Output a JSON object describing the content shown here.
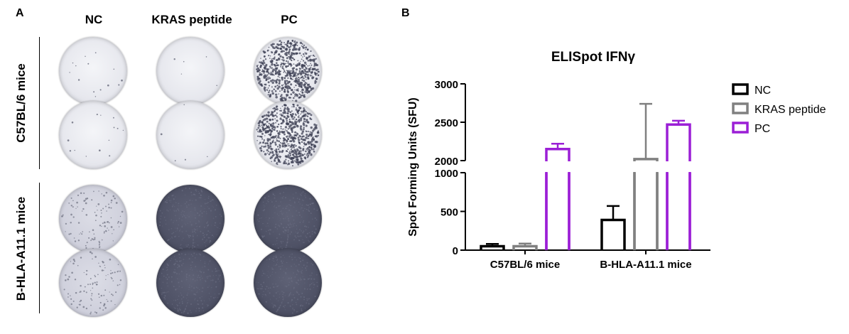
{
  "panels": {
    "a": "A",
    "b": "B"
  },
  "wells": {
    "columns": [
      "NC",
      "KRAS peptide",
      "PC"
    ],
    "rows": [
      "C57BL/6 mice",
      "B-HLA-A11.1 mice"
    ],
    "images": [
      [
        "clear-sparse",
        "clear-blank",
        "clear-dense-spots"
      ],
      [
        "clear-sparse",
        "clear-blank",
        "clear-dense-spots"
      ],
      [
        "clear-spotted",
        "dark-saturated",
        "dark-saturated"
      ],
      [
        "clear-spotted",
        "dark-saturated",
        "dark-saturated"
      ]
    ]
  },
  "chart_data": {
    "type": "bar",
    "title": "ELISpot IFNγ",
    "ylabel": "Spot Forming Units (SFU)",
    "xlabel": "",
    "categories": [
      "C57BL/6 mice",
      "B-HLA-A11.1 mice"
    ],
    "axis_break": {
      "lower": [
        0,
        1000
      ],
      "upper": [
        2000,
        3000
      ]
    },
    "yticks_lower": [
      "0",
      "500",
      "1000"
    ],
    "yticks_upper": [
      "2000",
      "2500",
      "3000"
    ],
    "legend_position": "right",
    "series": [
      {
        "name": "NC",
        "color": "#000000",
        "values": [
          50,
          390
        ],
        "errors": [
          30,
          180
        ]
      },
      {
        "name": "KRAS peptide",
        "color": "#808080",
        "values": [
          50,
          2020
        ],
        "errors": [
          35,
          720
        ]
      },
      {
        "name": "PC",
        "color": "#9b1fd6",
        "values": [
          2150,
          2470
        ],
        "errors": [
          70,
          50
        ]
      }
    ]
  }
}
